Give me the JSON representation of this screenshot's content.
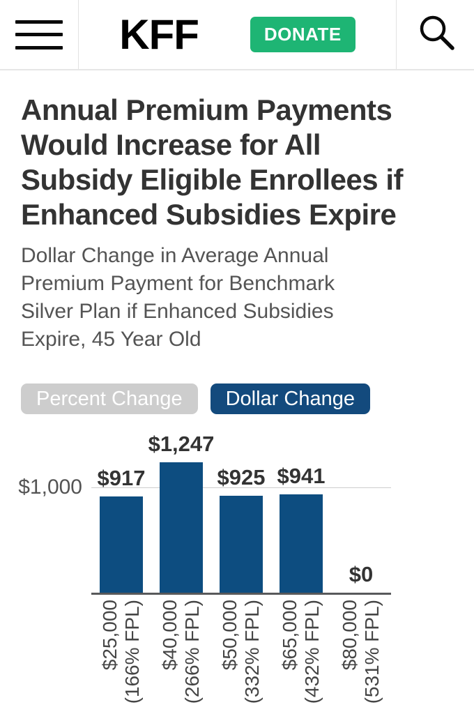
{
  "header": {
    "logo": "KFF",
    "donate_label": "DONATE"
  },
  "article": {
    "title": "Annual Premium Payments Would Increase for All Subsidy Eligible Enrollees if Enhanced Subsidies Expire",
    "title_lines": [
      "Annual Premium Payments",
      "Would Increase for All",
      "Subsidy Eligible Enrollees if",
      "Enhanced Subsidies Expire"
    ],
    "subtitle": "Dollar Change in Average Annual Premium Payment for Benchmark Silver Plan if Enhanced Subsidies Expire, 45 Year Old",
    "subtitle_lines": [
      "Dollar Change in Average Annual",
      "Premium Payment for Benchmark",
      "Silver Plan if Enhanced Subsidies",
      "Expire, 45 Year Old"
    ]
  },
  "toggles": [
    {
      "label": "Percent Change",
      "active": false
    },
    {
      "label": "Dollar Change",
      "active": true
    }
  ],
  "colors": {
    "bar_blue": "#0d4d80",
    "active_pill_blue": "#134a7d",
    "inactive_pill_gray": "#cdcdcd",
    "donate_green": "#1eb574",
    "title_text": "#333333",
    "axis_line": "#58595b",
    "gridline": "#cccccc"
  },
  "chart_data": {
    "type": "bar",
    "title": "Dollar Change in Average Annual Premium Payment for Benchmark Silver Plan if Enhanced Subsidies Expire, 45 Year Old",
    "categories": [
      "$25,000 (166% FPL)",
      "$40,000 (266% FPL)",
      "$50,000 (332% FPL)",
      "$65,000 (432% FPL)",
      "$80,000 (531% FPL)"
    ],
    "category_lines": [
      [
        "$25,000",
        "(166% FPL)"
      ],
      [
        "$40,000",
        "(266% FPL)"
      ],
      [
        "$50,000",
        "(332% FPL)"
      ],
      [
        "$65,000",
        "(432% FPL)"
      ],
      [
        "$80,000",
        "(531% FPL)"
      ]
    ],
    "values": [
      917,
      1247,
      925,
      941,
      0
    ],
    "value_labels": [
      "$917",
      "$1,247",
      "$925",
      "$941",
      "$0"
    ],
    "xlabel": "",
    "ylabel": "",
    "y_axis": {
      "tick_label": "$1,000",
      "tick_value": 1000
    },
    "ylim": [
      0,
      1600
    ],
    "grid": "single horizontal line at 1000",
    "legend": "none",
    "bar_color": "#0d4d80"
  }
}
